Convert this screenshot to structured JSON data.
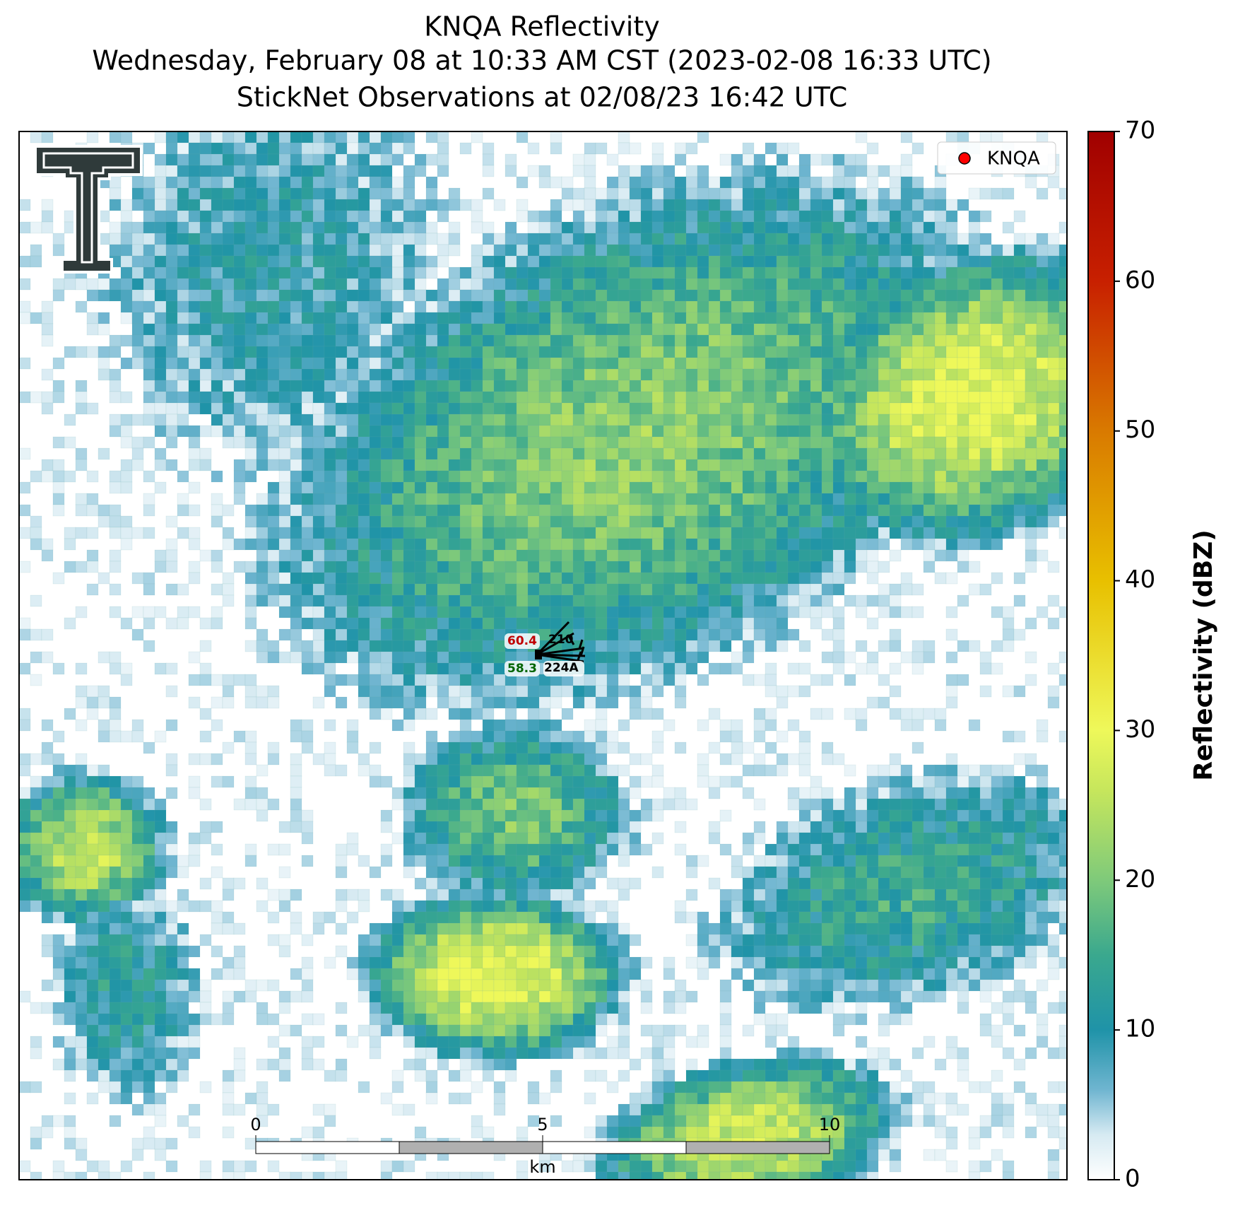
{
  "title_lines": [
    "KNQA Reflectivity",
    "Wednesday, February 08 at 10:33 AM CST (2023-02-08 16:33 UTC)",
    "StickNet Observations at 02/08/23 16:42 UTC"
  ],
  "colorbar": {
    "label": "Reflectivity (dBZ)",
    "ylim": [
      0,
      70
    ],
    "yticks": [
      0,
      10,
      20,
      30,
      40,
      50,
      60,
      70
    ]
  },
  "legend": {
    "label": "KNQA",
    "color": "#ff0000"
  },
  "station_plot": {
    "temperature": 60.4,
    "temperature_color": "#c00000",
    "dewpoint": 58.3,
    "dewpoint_color": "#006400",
    "ids": [
      "210",
      "224A"
    ]
  },
  "scale_bar": {
    "ticks": [
      0,
      5,
      10
    ],
    "unit": "km"
  }
}
